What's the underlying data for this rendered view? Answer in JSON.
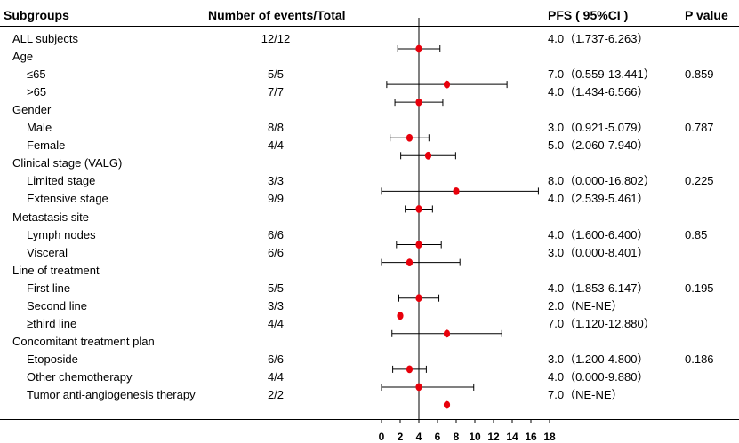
{
  "headers": {
    "subgroups": "Subgroups",
    "events": "Number of events/Total",
    "pfs": "PFS ( 95%CI )",
    "pvalue": "P value"
  },
  "rows": [
    {
      "label": "ALL subjects",
      "indent": 0,
      "events": "12/12",
      "pfs": "4.0（1.737-6.263）",
      "p": ""
    },
    {
      "label": "Age",
      "indent": 0,
      "events": "",
      "pfs": "",
      "p": ""
    },
    {
      "label": "≤65",
      "indent": 1,
      "events": "5/5",
      "pfs": "7.0（0.559-13.441）",
      "p": "0.859"
    },
    {
      "label": ">65",
      "indent": 1,
      "events": "7/7",
      "pfs": "4.0（1.434-6.566）",
      "p": ""
    },
    {
      "label": "Gender",
      "indent": 0,
      "events": "",
      "pfs": "",
      "p": ""
    },
    {
      "label": "Male",
      "indent": 1,
      "events": "8/8",
      "pfs": "3.0（0.921-5.079）",
      "p": "0.787"
    },
    {
      "label": "Female",
      "indent": 1,
      "events": "4/4",
      "pfs": "5.0（2.060-7.940）",
      "p": ""
    },
    {
      "label": "Clinical stage (VALG)",
      "indent": 0,
      "events": "",
      "pfs": "",
      "p": ""
    },
    {
      "label": "Limited stage",
      "indent": 1,
      "events": "3/3",
      "pfs": "8.0（0.000-16.802）",
      "p": "0.225"
    },
    {
      "label": "Extensive stage",
      "indent": 1,
      "events": "9/9",
      "pfs": "4.0（2.539-5.461）",
      "p": ""
    },
    {
      "label": "Metastasis site",
      "indent": 0,
      "events": "",
      "pfs": "",
      "p": ""
    },
    {
      "label": "Lymph nodes",
      "indent": 1,
      "events": "6/6",
      "pfs": "4.0（1.600-6.400）",
      "p": "0.85"
    },
    {
      "label": "Visceral",
      "indent": 1,
      "events": "6/6",
      "pfs": "3.0（0.000-8.401）",
      "p": ""
    },
    {
      "label": "Line of treatment",
      "indent": 0,
      "events": "",
      "pfs": "",
      "p": ""
    },
    {
      "label": "First line",
      "indent": 1,
      "events": "5/5",
      "pfs": "4.0（1.853-6.147）",
      "p": "0.195"
    },
    {
      "label": "Second line",
      "indent": 1,
      "events": "3/3",
      "pfs": "2.0（NE-NE）",
      "p": ""
    },
    {
      "label": "≥third line",
      "indent": 1,
      "events": "4/4",
      "pfs": "7.0（1.120-12.880）",
      "p": ""
    },
    {
      "label": "Concomitant treatment plan",
      "indent": 0,
      "events": "",
      "pfs": "",
      "p": ""
    },
    {
      "label": "Etoposide",
      "indent": 1,
      "events": "6/6",
      "pfs": "3.0（1.200-4.800）",
      "p": "0.186"
    },
    {
      "label": "Other chemotherapy",
      "indent": 1,
      "events": "4/4",
      "pfs": "4.0（0.000-9.880）",
      "p": ""
    },
    {
      "label": "Tumor anti-angiogenesis therapy",
      "indent": 1,
      "events": "2/2",
      "pfs": "7.0（NE-NE）",
      "p": ""
    }
  ],
  "chart_data": {
    "type": "forest",
    "xlim": [
      0,
      18
    ],
    "xticks": [
      "0",
      "2",
      "4",
      "6",
      "8",
      "10",
      "12",
      "14",
      "16",
      "18"
    ],
    "reference_line": 4,
    "point_color": "#e8000b",
    "points": [
      {
        "row": 0,
        "estimate": 4.0,
        "lower": 1.737,
        "upper": 6.263
      },
      {
        "row": 2,
        "estimate": 7.0,
        "lower": 0.559,
        "upper": 13.441
      },
      {
        "row": 3,
        "estimate": 4.0,
        "lower": 1.434,
        "upper": 6.566
      },
      {
        "row": 5,
        "estimate": 3.0,
        "lower": 0.921,
        "upper": 5.079
      },
      {
        "row": 6,
        "estimate": 5.0,
        "lower": 2.06,
        "upper": 7.94
      },
      {
        "row": 8,
        "estimate": 8.0,
        "lower": 0.0,
        "upper": 16.802
      },
      {
        "row": 9,
        "estimate": 4.0,
        "lower": 2.539,
        "upper": 5.461
      },
      {
        "row": 11,
        "estimate": 4.0,
        "lower": 1.6,
        "upper": 6.4
      },
      {
        "row": 12,
        "estimate": 3.0,
        "lower": 0.0,
        "upper": 8.401
      },
      {
        "row": 14,
        "estimate": 4.0,
        "lower": 1.853,
        "upper": 6.147
      },
      {
        "row": 15,
        "estimate": 2.0,
        "lower": null,
        "upper": null
      },
      {
        "row": 16,
        "estimate": 7.0,
        "lower": 1.12,
        "upper": 12.88
      },
      {
        "row": 18,
        "estimate": 3.0,
        "lower": 1.2,
        "upper": 4.8
      },
      {
        "row": 19,
        "estimate": 4.0,
        "lower": 0.0,
        "upper": 9.88
      },
      {
        "row": 20,
        "estimate": 7.0,
        "lower": null,
        "upper": null
      }
    ]
  }
}
